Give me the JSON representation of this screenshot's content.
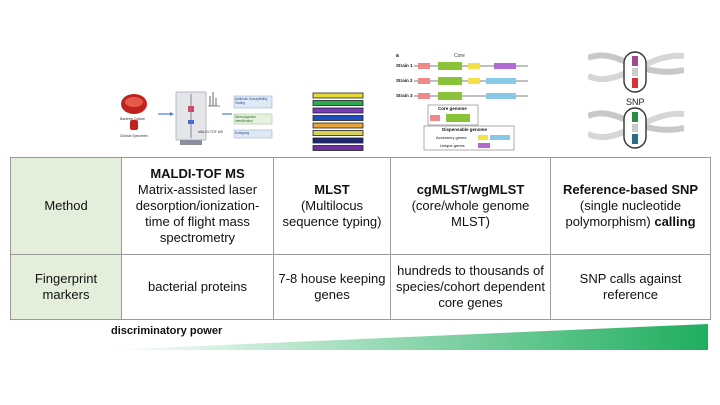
{
  "maldi": {
    "labels": [
      "Bacteria Culture",
      "Clinical Specimen",
      "MALDI-TOF MS",
      "Antibiotic Susceptibility Testing",
      "Microorganism Identification",
      "Subtyping"
    ]
  },
  "mlst_bars": {
    "colors": [
      "#e8d93a",
      "#2fa84f",
      "#7a3cb8",
      "#1f4fbf",
      "#e8a23a",
      "#d9d25a",
      "#1a2a7a",
      "#6b2fa0"
    ]
  },
  "cgmlst": {
    "panel_letter": "a",
    "core_label": "Core",
    "strains": [
      "Strain 1",
      "Strain 2",
      "Strain 3"
    ],
    "core_genome_label": "Core genome",
    "dispensable_label": "Dispensable genome",
    "accessory_label": "Accessory genes",
    "unique_label": "Unique genes"
  },
  "snp": {
    "label": "SNP"
  },
  "table": {
    "rows": [
      {
        "header": "Method",
        "cells": [
          {
            "bold": "MALDI-TOF MS",
            "text": "Matrix-assisted laser desorption/ionization-time of flight mass spectrometry"
          },
          {
            "bold": "MLST",
            "text": "(Multilocus sequence typing)"
          },
          {
            "bold": "cgMLST/wgMLST",
            "text": "(core/whole genome MLST)"
          },
          {
            "bold": "Reference-based SNP",
            "text": "(single nucleotide polymorphism)",
            "bold_after": "calling"
          }
        ]
      },
      {
        "header": "Fingerprint markers",
        "cells": [
          {
            "text": "bacterial proteins"
          },
          {
            "text": "7-8 house keeping genes"
          },
          {
            "text": "hundreds to thousands of species/cohort dependent core genes"
          },
          {
            "text": "SNP calls against reference"
          }
        ]
      }
    ]
  },
  "power": {
    "label": "discriminatory power",
    "gradient_start": "#ffffff",
    "gradient_end": "#1fae5f"
  }
}
